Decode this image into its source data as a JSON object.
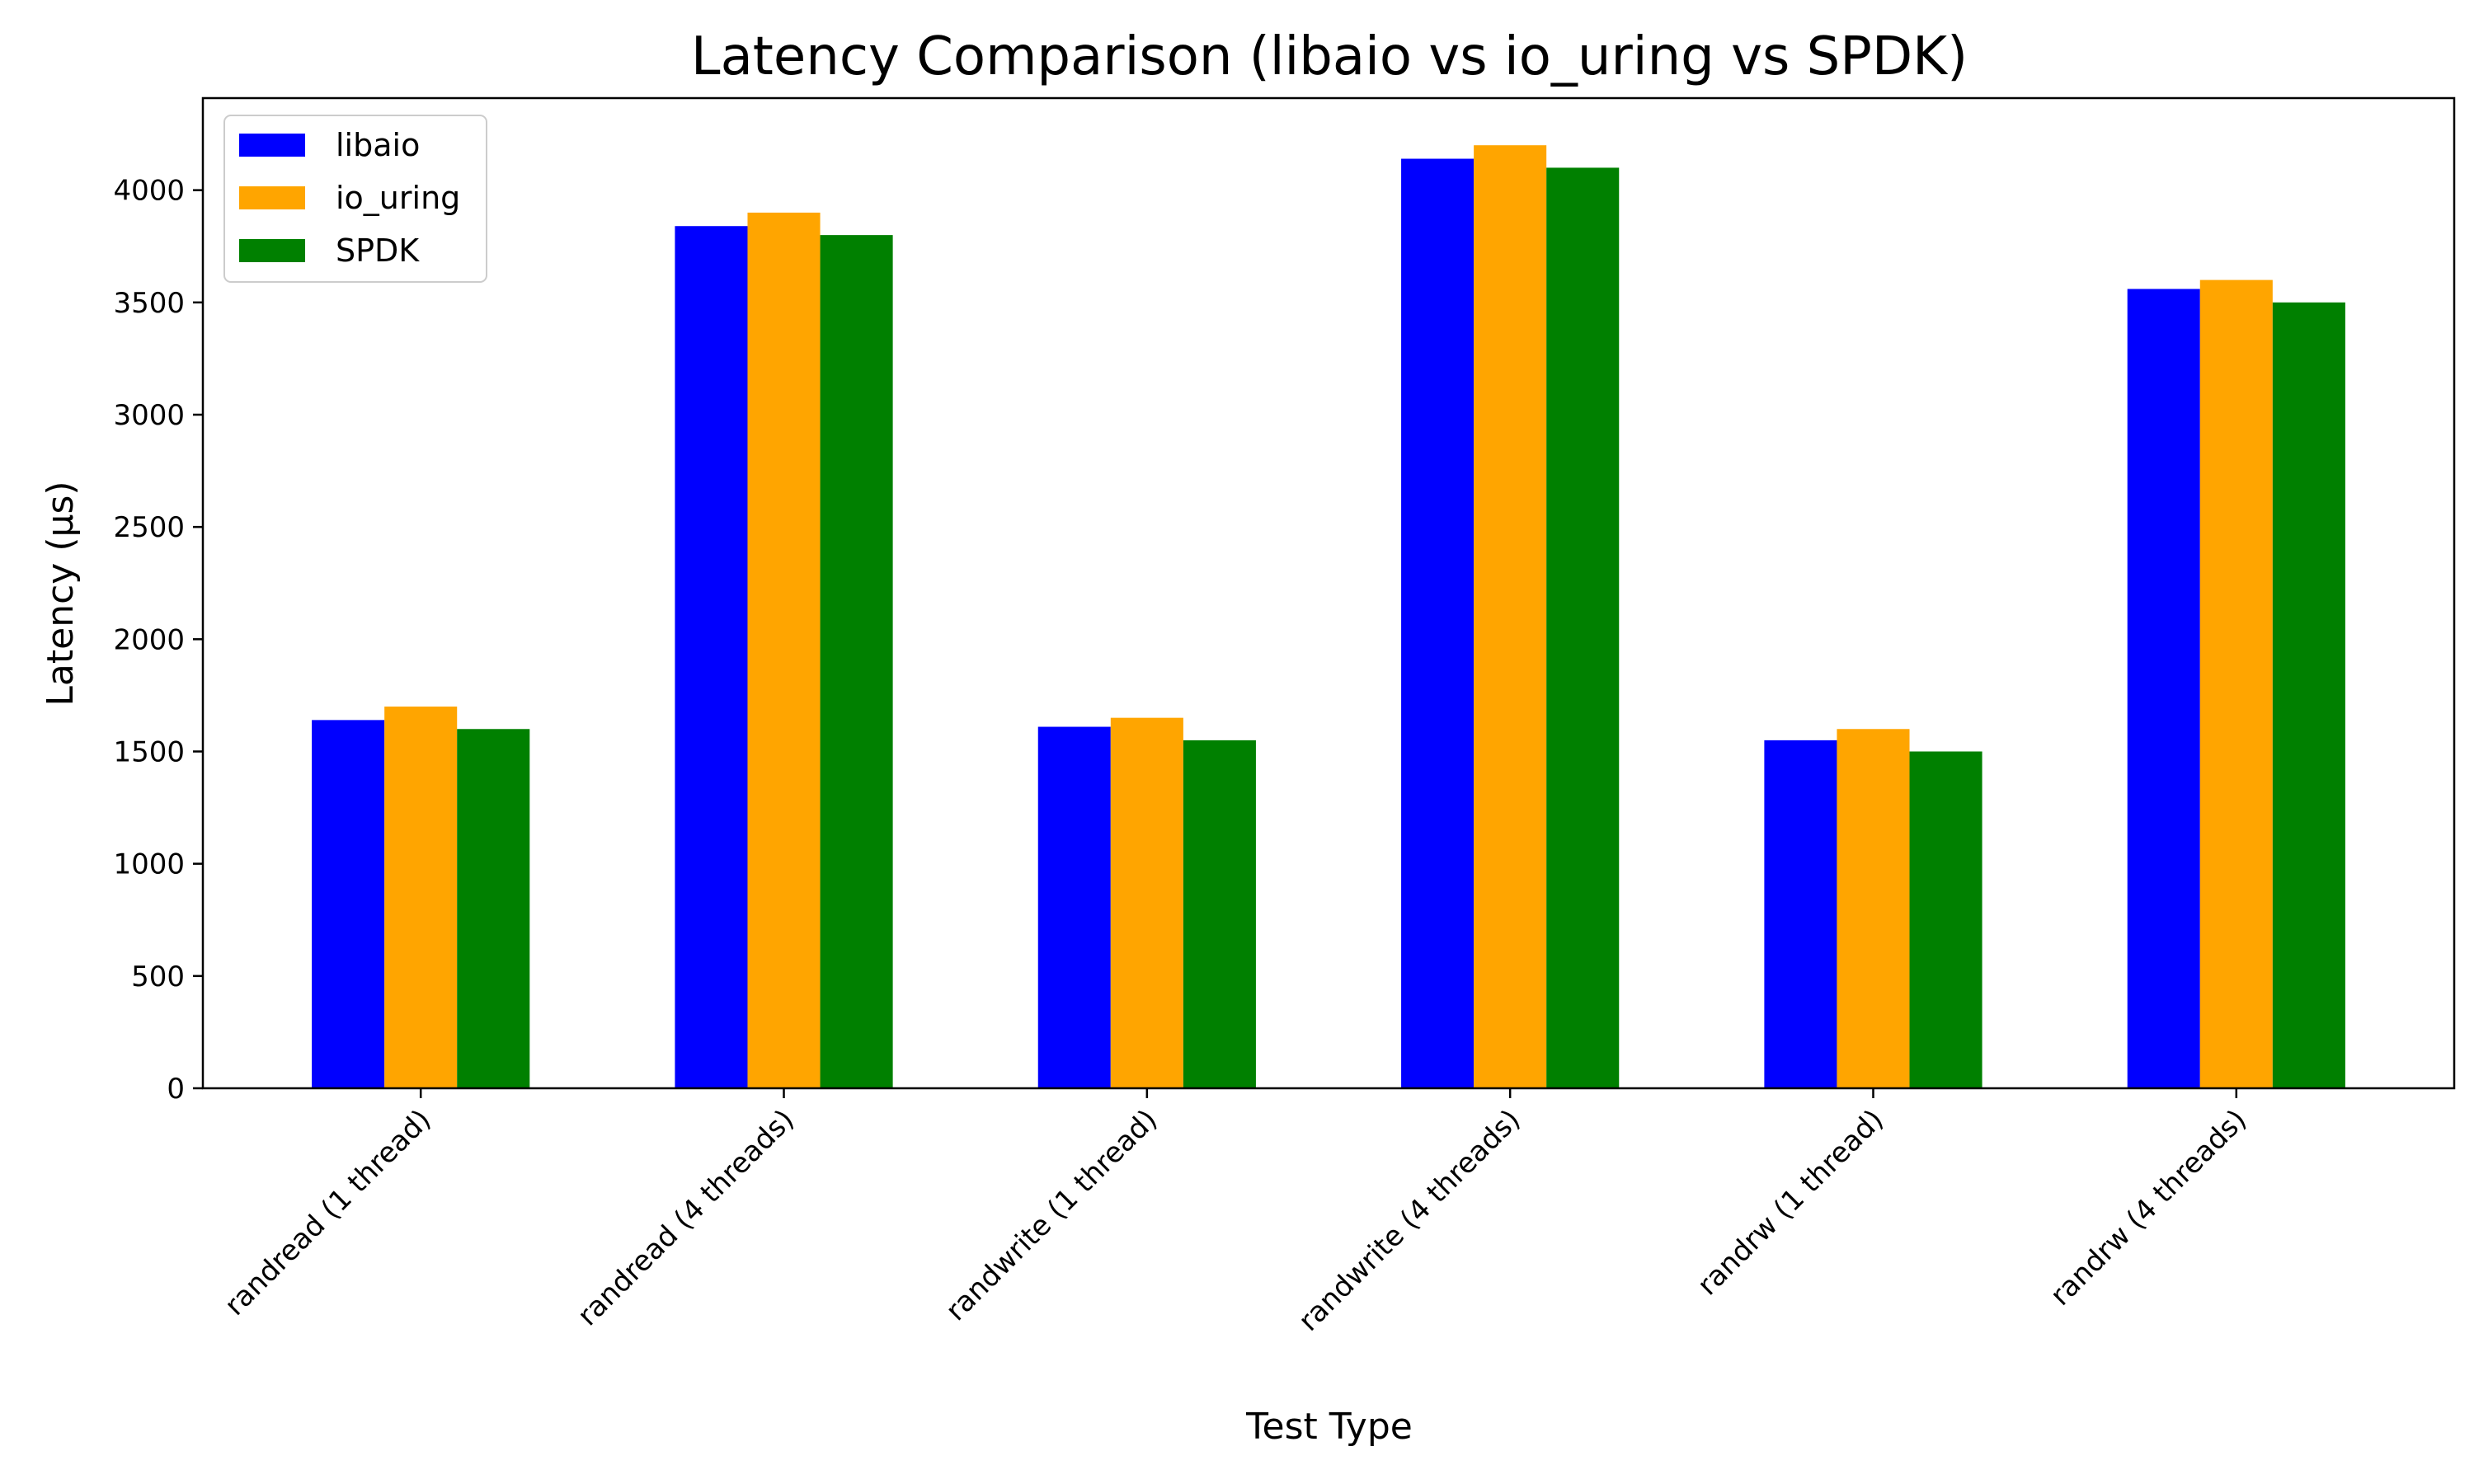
{
  "chart_data": {
    "type": "bar",
    "title": "Latency Comparison (libaio vs io_uring vs SPDK)",
    "xlabel": "Test Type",
    "ylabel": "Latency (µs)",
    "categories": [
      "randread (1 thread)",
      "randread (4 threads)",
      "randwrite (1 thread)",
      "randwrite (4 threads)",
      "randrw (1 thread)",
      "randrw (4 threads)"
    ],
    "series": [
      {
        "name": "libaio",
        "color": "#0000ff",
        "values": [
          1640,
          3840,
          1610,
          4140,
          1550,
          3560
        ]
      },
      {
        "name": "io_uring",
        "color": "#ffa500",
        "values": [
          1700,
          3900,
          1650,
          4200,
          1600,
          3600
        ]
      },
      {
        "name": "SPDK",
        "color": "#008000",
        "values": [
          1600,
          3800,
          1550,
          4100,
          1500,
          3500
        ]
      }
    ],
    "ylim": [
      0,
      4410
    ],
    "yticks": [
      0,
      500,
      1000,
      1500,
      2000,
      2500,
      3000,
      3500,
      4000
    ],
    "xtick_rotation_deg": 45,
    "grid": false,
    "legend_position": "upper left"
  }
}
